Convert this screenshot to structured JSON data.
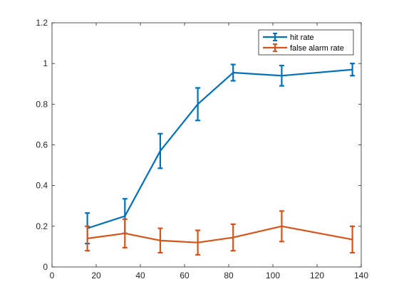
{
  "chart_data": {
    "type": "line",
    "title": "",
    "xlabel": "",
    "ylabel": "",
    "xlim": [
      0,
      140
    ],
    "ylim": [
      0,
      1.2
    ],
    "xticks": [
      0,
      20,
      40,
      60,
      80,
      100,
      120,
      140
    ],
    "yticks": [
      0,
      0.2,
      0.4,
      0.6,
      0.8,
      1,
      1.2
    ],
    "xtick_labels": [
      "0",
      "20",
      "40",
      "60",
      "80",
      "100",
      "120",
      "140"
    ],
    "ytick_labels": [
      "0",
      "0.2",
      "0.4",
      "0.6",
      "0.8",
      "1",
      "1.2"
    ],
    "grid": false,
    "legend_position": "top-right",
    "x": [
      16,
      33,
      49,
      66,
      82,
      104,
      136
    ],
    "series": [
      {
        "name": "hit rate",
        "color": "#0072BD",
        "values": [
          0.19,
          0.25,
          0.57,
          0.8,
          0.955,
          0.94,
          0.97
        ],
        "err_low": [
          0.075,
          0.085,
          0.085,
          0.08,
          0.04,
          0.05,
          0.03
        ],
        "err_high": [
          0.075,
          0.085,
          0.085,
          0.08,
          0.04,
          0.05,
          0.03
        ]
      },
      {
        "name": "false alarm rate",
        "color": "#D95319",
        "values": [
          0.14,
          0.165,
          0.13,
          0.12,
          0.145,
          0.2,
          0.135
        ],
        "err_low": [
          0.06,
          0.07,
          0.06,
          0.06,
          0.065,
          0.075,
          0.065
        ],
        "err_high": [
          0.06,
          0.07,
          0.06,
          0.06,
          0.065,
          0.075,
          0.065
        ]
      }
    ]
  }
}
